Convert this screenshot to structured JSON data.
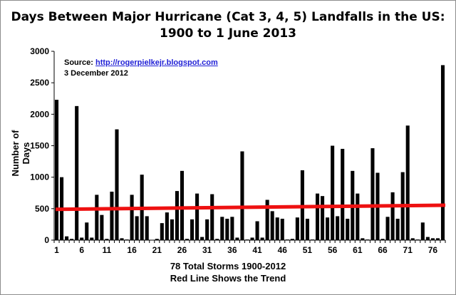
{
  "chart_data": {
    "type": "bar",
    "title_line1": "Days Between Major Hurricane (Cat 3, 4, 5) Landfalls in the US:",
    "title_line2": "1900 to 1 June 2013",
    "ylabel": "Number of Days",
    "xlabel_line1": "78 Total Storms 1900-2012",
    "xlabel_line2": "Red Line Shows the Trend",
    "source_label": "Source: ",
    "source_link": "http://rogerpielkejr.blogspot.com",
    "date_text": "3 December 2012",
    "ylim": [
      0,
      3000
    ],
    "yticks": [
      0,
      500,
      1000,
      1500,
      2000,
      2500,
      3000
    ],
    "xtick_labels": [
      "1",
      "6",
      "11",
      "16",
      "21",
      "26",
      "31",
      "36",
      "41",
      "46",
      "51",
      "56",
      "61",
      "66",
      "71",
      "76"
    ],
    "categories": [
      1,
      2,
      3,
      4,
      5,
      6,
      7,
      8,
      9,
      10,
      11,
      12,
      13,
      14,
      15,
      16,
      17,
      18,
      19,
      20,
      21,
      22,
      23,
      24,
      25,
      26,
      27,
      28,
      29,
      30,
      31,
      32,
      33,
      34,
      35,
      36,
      37,
      38,
      39,
      40,
      41,
      42,
      43,
      44,
      45,
      46,
      47,
      48,
      49,
      50,
      51,
      52,
      53,
      54,
      55,
      56,
      57,
      58,
      59,
      60,
      61,
      62,
      63,
      64,
      65,
      66,
      67,
      68,
      69,
      70,
      71,
      72,
      73,
      74,
      75,
      76,
      77,
      78
    ],
    "values": [
      2230,
      1000,
      60,
      20,
      2130,
      40,
      280,
      40,
      720,
      400,
      20,
      770,
      1760,
      30,
      10,
      720,
      380,
      1040,
      380,
      0,
      20,
      270,
      440,
      330,
      780,
      1100,
      20,
      330,
      740,
      50,
      330,
      730,
      20,
      370,
      340,
      370,
      40,
      1410,
      10,
      40,
      300,
      40,
      640,
      460,
      360,
      340,
      10,
      20,
      360,
      1110,
      340,
      10,
      740,
      700,
      360,
      1500,
      380,
      1450,
      340,
      1100,
      740,
      30,
      10,
      1460,
      1070,
      20,
      370,
      760,
      340,
      1080,
      1820,
      30,
      10,
      280,
      50,
      30,
      30,
      2780
    ],
    "trend": {
      "start": 490,
      "end": 555,
      "color": "#ee1111"
    },
    "bar_color": "#000000",
    "grid": false
  }
}
